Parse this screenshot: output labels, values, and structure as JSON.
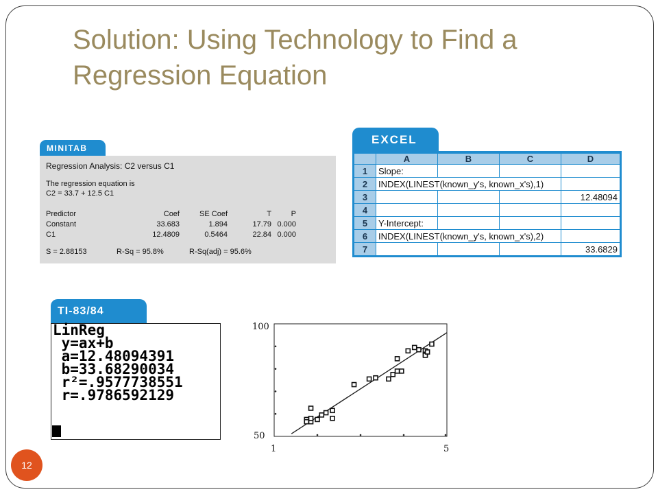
{
  "slide": {
    "title_line1": "Solution: Using Technology to Find a",
    "title_line2": "Regression Equation",
    "number": "12"
  },
  "minitab": {
    "tab_label": "MINITAB",
    "heading": "Regression Analysis: C2 versus C1",
    "eq_intro": "The regression equation is",
    "equation": "C2 = 33.7 + 12.5 C1",
    "columns": [
      "Predictor",
      "Coef",
      "SE Coef",
      "T",
      "P"
    ],
    "rows": [
      [
        "Constant",
        "33.683",
        "1.894",
        "17.79",
        "0.000"
      ],
      [
        "C1",
        "12.4809",
        "0.5464",
        "22.84",
        "0.000"
      ]
    ],
    "s_value": "S = 2.88153",
    "rsq": "R-Sq = 95.8%",
    "rsq_adj": "R-Sq(adj) = 95.6%"
  },
  "excel": {
    "tab_label": "EXCEL",
    "columns": [
      "A",
      "B",
      "C",
      "D"
    ],
    "rows": [
      {
        "n": "1",
        "a": "Slope:",
        "d": ""
      },
      {
        "n": "2",
        "a": "INDEX(LINEST(known_y's, known_x's),1)",
        "d": ""
      },
      {
        "n": "3",
        "a": "",
        "d": "12.48094"
      },
      {
        "n": "4",
        "a": "",
        "d": ""
      },
      {
        "n": "5",
        "a": "Y-Intercept:",
        "d": ""
      },
      {
        "n": "6",
        "a": "INDEX(LINEST(known_y's, known_x's),2)",
        "d": ""
      },
      {
        "n": "7",
        "a": "",
        "d": "33.6829"
      }
    ]
  },
  "ti": {
    "tab_label": "TI-83/84",
    "lines": [
      "LinReg",
      " y=ax+b",
      " a=12.48094391",
      " b=33.68290034",
      " r²=.9577738551",
      " r=.9786592129"
    ]
  },
  "chart_data": {
    "type": "scatter",
    "xlim": [
      1,
      5
    ],
    "ylim": [
      50,
      100
    ],
    "x_tick_labels": [
      "1",
      "5"
    ],
    "y_tick_labels": [
      "50",
      "100"
    ],
    "points": [
      [
        1.75,
        57.5
      ],
      [
        1.75,
        56.5
      ],
      [
        1.85,
        56.5
      ],
      [
        1.85,
        58.0
      ],
      [
        1.85,
        62.5
      ],
      [
        2.0,
        57.5
      ],
      [
        2.1,
        59.5
      ],
      [
        2.2,
        60.5
      ],
      [
        2.35,
        58.0
      ],
      [
        2.35,
        61.5
      ],
      [
        2.85,
        73.0
      ],
      [
        3.2,
        75.5
      ],
      [
        3.35,
        76.0
      ],
      [
        3.65,
        75.5
      ],
      [
        3.75,
        77.5
      ],
      [
        3.85,
        79.0
      ],
      [
        3.85,
        84.5
      ],
      [
        3.95,
        79.0
      ],
      [
        4.1,
        88.0
      ],
      [
        4.25,
        89.5
      ],
      [
        4.35,
        88.5
      ],
      [
        4.5,
        88.0
      ],
      [
        4.5,
        86.5
      ],
      [
        4.5,
        86.0
      ],
      [
        4.55,
        87.5
      ],
      [
        4.65,
        91.0
      ]
    ],
    "regression_line": {
      "slope": 12.48094391,
      "intercept": 33.68290034
    }
  }
}
